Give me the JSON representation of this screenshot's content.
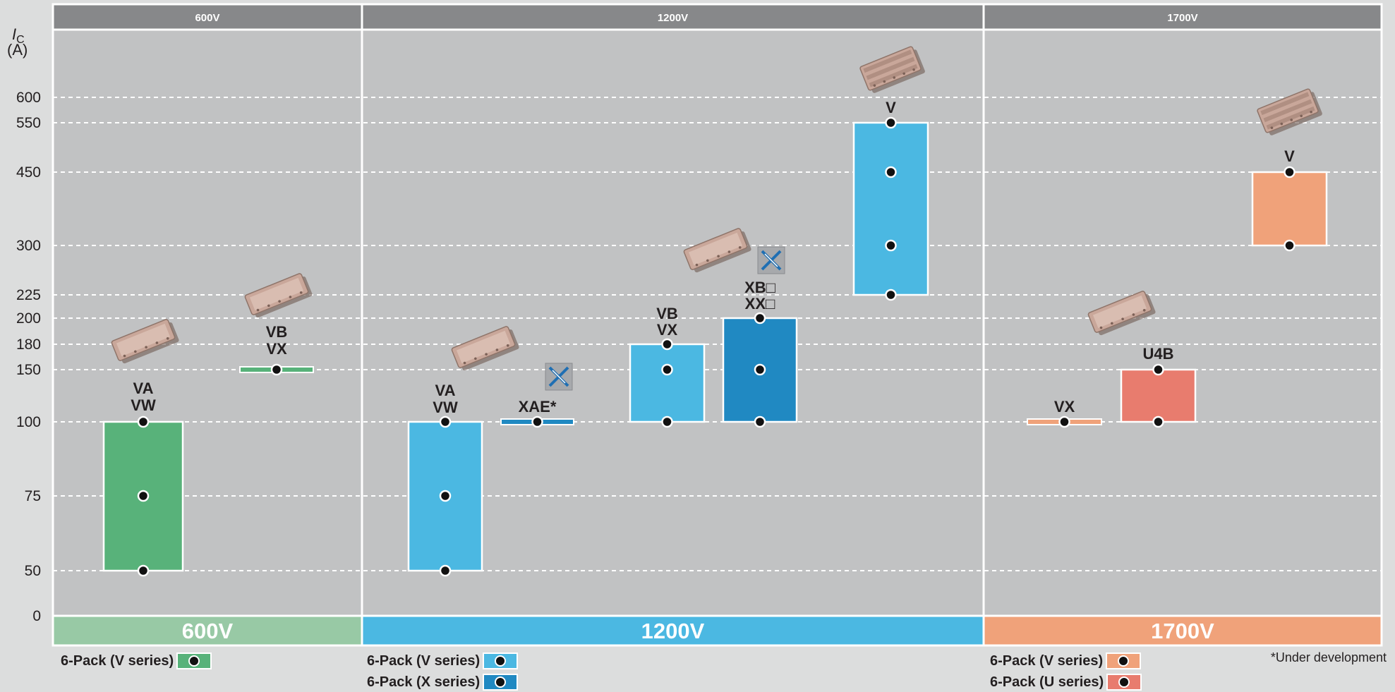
{
  "chart_data": {
    "type": "bar",
    "ylabel_italic": "I",
    "ylabel_sub": "C",
    "yunit": "(A)",
    "yticks": [
      0,
      50,
      75,
      100,
      150,
      180,
      200,
      225,
      300,
      450,
      550,
      600
    ],
    "groups": [
      {
        "name": "600V",
        "color": "#98c9a5"
      },
      {
        "name": "1200V",
        "color": "#4bb8e2"
      },
      {
        "name": "1700V",
        "color": "#f0a27a"
      }
    ],
    "series": [
      {
        "group": "600V",
        "labels": [
          "VA",
          "VW"
        ],
        "series_type": "6-Pack (V series)",
        "color": "#58b27a",
        "min": 50,
        "max": 100,
        "points": [
          50,
          75,
          100
        ],
        "shape": "bar"
      },
      {
        "group": "600V",
        "labels": [
          "VB",
          "VX"
        ],
        "series_type": "6-Pack (V series)",
        "color": "#58b27a",
        "min": 150,
        "max": 150,
        "points": [
          150
        ],
        "shape": "line"
      },
      {
        "group": "1200V",
        "labels": [
          "VA",
          "VW"
        ],
        "series_type": "6-Pack (V series)",
        "color": "#4bb8e2",
        "min": 50,
        "max": 100,
        "points": [
          50,
          75,
          100
        ],
        "shape": "bar"
      },
      {
        "group": "1200V",
        "labels": [
          "XAE*"
        ],
        "series_type": "6-Pack (X series)",
        "color": "#2089c2",
        "min": 100,
        "max": 100,
        "points": [
          100
        ],
        "shape": "line"
      },
      {
        "group": "1200V",
        "labels": [
          "VB",
          "VX"
        ],
        "series_type": "6-Pack (V series)",
        "color": "#4bb8e2",
        "min": 100,
        "max": 180,
        "points": [
          100,
          150,
          180
        ],
        "shape": "bar"
      },
      {
        "group": "1200V",
        "labels": [
          "XB□",
          "XX□"
        ],
        "series_type": "6-Pack (X series)",
        "color": "#2089c2",
        "min": 100,
        "max": 200,
        "points": [
          100,
          150,
          200
        ],
        "shape": "bar"
      },
      {
        "group": "1200V",
        "labels": [
          "V"
        ],
        "series_type": "6-Pack (V series)",
        "color": "#4bb8e2",
        "min": 225,
        "max": 550,
        "points": [
          225,
          300,
          450,
          550
        ],
        "shape": "bar"
      },
      {
        "group": "1700V",
        "labels": [
          "VX"
        ],
        "series_type": "6-Pack (V series)",
        "color": "#f0a27a",
        "min": 100,
        "max": 100,
        "points": [
          100
        ],
        "shape": "line"
      },
      {
        "group": "1700V",
        "labels": [
          "U4B"
        ],
        "series_type": "6-Pack (U series)",
        "color": "#e87c6e",
        "min": 100,
        "max": 150,
        "points": [
          100,
          150
        ],
        "shape": "bar"
      },
      {
        "group": "1700V",
        "labels": [
          "V"
        ],
        "series_type": "6-Pack (V series)",
        "color": "#f0a27a",
        "min": 300,
        "max": 450,
        "points": [
          300,
          450
        ],
        "shape": "bar"
      }
    ],
    "grid": "dashed horizontal"
  },
  "legend": {
    "v600": "6-Pack (V series)",
    "v1200_v": "6-Pack (V series)",
    "v1200_x": "6-Pack (X series)",
    "v1700_v": "6-Pack (V series)",
    "v1700_u": "6-Pack (U series)"
  },
  "note": "*Under development",
  "colors": {
    "panel": "#c1c2c3",
    "header": "#87888a",
    "green": "#58b27a",
    "lightblue": "#4bb8e2",
    "darkblue": "#2089c2",
    "orange": "#f0a27a",
    "salmon": "#e87c6e"
  },
  "icons": [
    "module-image",
    "x-series-logo-icon"
  ]
}
